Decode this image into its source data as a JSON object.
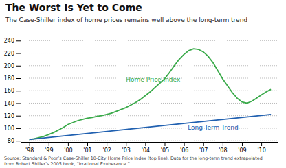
{
  "chart_data": {
    "type": "line",
    "title": "The Worst Is Yet to Come",
    "subtitle": "The Case-Shiller index of home prices remains well above the long-term trend",
    "source": "Source: Standard & Poor’s Case-Shiller 10-City Home Price Index (top line). Data for the long-term trend extrapolated\nfrom Robert Shiller’s 2005 book, “Irrational Exuberance.”",
    "xlim": [
      1997.55,
      2010.85
    ],
    "xticks": [
      {
        "value": 1998,
        "label": "'98"
      },
      {
        "value": 1999,
        "label": "'99"
      },
      {
        "value": 2000,
        "label": "'00"
      },
      {
        "value": 2001,
        "label": "'01"
      },
      {
        "value": 2002,
        "label": "'02"
      },
      {
        "value": 2003,
        "label": "'03"
      },
      {
        "value": 2004,
        "label": "'04"
      },
      {
        "value": 2005,
        "label": "'05"
      },
      {
        "value": 2006,
        "label": "'06"
      },
      {
        "value": 2007,
        "label": "'07"
      },
      {
        "value": 2008,
        "label": "'08"
      },
      {
        "value": 2009,
        "label": "'09"
      },
      {
        "value": 2010,
        "label": "'10"
      }
    ],
    "ylim": [
      78,
      248
    ],
    "yticks": [
      80,
      100,
      120,
      140,
      160,
      180,
      200,
      220,
      240
    ],
    "grid": true,
    "series": [
      {
        "name": "Home Price Index",
        "color": "#3aaa4a",
        "x": [
          1998.0,
          1998.25,
          1998.5,
          1998.75,
          1999.0,
          1999.25,
          1999.5,
          1999.75,
          2000.0,
          2000.25,
          2000.5,
          2000.75,
          2001.0,
          2001.25,
          2001.5,
          2001.75,
          2002.0,
          2002.25,
          2002.5,
          2002.75,
          2003.0,
          2003.25,
          2003.5,
          2003.75,
          2004.0,
          2004.25,
          2004.5,
          2004.75,
          2005.0,
          2005.25,
          2005.5,
          2005.75,
          2006.0,
          2006.25,
          2006.5,
          2006.75,
          2007.0,
          2007.25,
          2007.5,
          2007.75,
          2008.0,
          2008.25,
          2008.5,
          2008.75,
          2009.0,
          2009.25,
          2009.5,
          2009.75,
          2010.0,
          2010.25,
          2010.5
        ],
        "values": [
          82,
          83,
          85,
          87,
          90,
          93,
          97,
          101,
          106,
          109,
          112,
          114,
          116,
          117,
          119,
          120,
          122,
          124,
          127,
          130,
          133,
          137,
          141,
          146,
          152,
          158,
          165,
          172,
          179,
          189,
          200,
          210,
          218,
          224,
          227,
          226,
          222,
          215,
          205,
          192,
          179,
          168,
          157,
          148,
          142,
          140,
          143,
          148,
          153,
          158,
          162
        ]
      },
      {
        "name": "Long-Term Trend",
        "color": "#2060b0",
        "x": [
          1998.0,
          2010.5
        ],
        "values": [
          82,
          122
        ]
      }
    ],
    "annotations": [
      {
        "text": "Home Price Index",
        "x": 2003.0,
        "y": 172,
        "color": "#3aaa4a"
      },
      {
        "text": "Long-Term Trend",
        "x": 2006.2,
        "y": 107,
        "color": "#2060b0"
      }
    ]
  }
}
